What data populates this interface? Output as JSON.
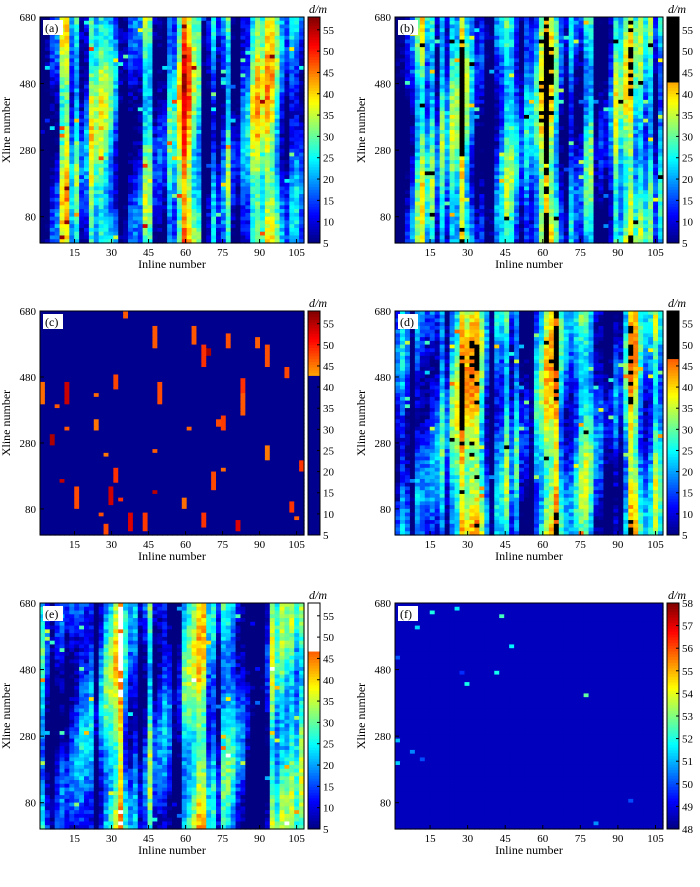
{
  "figure": {
    "panels": [
      "(a)",
      "(b)",
      "(c)",
      "(d)",
      "(e)",
      "(f)"
    ]
  },
  "chart_data": [
    {
      "panel": "(a)",
      "type": "heatmap",
      "xlabel": "Inline number",
      "ylabel": "Xline number",
      "xticks": [
        15,
        30,
        45,
        60,
        75,
        90,
        105
      ],
      "yticks": [
        80,
        280,
        480,
        680
      ],
      "xlim": [
        1,
        108
      ],
      "ylim": [
        1,
        680
      ],
      "colorbar": {
        "label": "d/m",
        "ticks": [
          5,
          10,
          15,
          20,
          25,
          30,
          35,
          40,
          45,
          50,
          55
        ],
        "range": [
          5,
          58
        ],
        "colormap": "jet"
      },
      "pattern": "continuous",
      "seed": 11
    },
    {
      "panel": "(b)",
      "type": "heatmap",
      "xlabel": "Inline number",
      "ylabel": "Xline number",
      "xticks": [
        15,
        30,
        45,
        60,
        75,
        90,
        105
      ],
      "yticks": [
        80,
        280,
        480,
        680
      ],
      "xlim": [
        1,
        108
      ],
      "ylim": [
        1,
        680
      ],
      "colorbar": {
        "label": "d/m",
        "ticks": [
          5,
          10,
          15,
          20,
          25,
          30,
          35,
          40,
          45,
          50,
          55
        ],
        "range": [
          5,
          58
        ],
        "colormap": "jet",
        "saturate_above": 43,
        "saturate_color": "#000000"
      },
      "pattern": "continuous",
      "seed": 23
    },
    {
      "panel": "(c)",
      "type": "heatmap",
      "xlabel": "Inline number",
      "ylabel": "Xline number",
      "xticks": [
        15,
        30,
        45,
        60,
        75,
        90,
        105
      ],
      "yticks": [
        80,
        280,
        480,
        680
      ],
      "xlim": [
        1,
        108
      ],
      "ylim": [
        1,
        680
      ],
      "colorbar": {
        "label": "d/m",
        "ticks": [
          5,
          10,
          15,
          20,
          25,
          30,
          35,
          40,
          45,
          50,
          55
        ],
        "range": [
          5,
          58
        ],
        "colormap": "jet",
        "saturate_below": 43,
        "saturate_color": "#00008f"
      },
      "pattern": "sparse",
      "seed": 37
    },
    {
      "panel": "(d)",
      "type": "heatmap",
      "xlabel": "Inline number",
      "ylabel": "Xline number",
      "xticks": [
        15,
        30,
        45,
        60,
        75,
        90,
        105
      ],
      "yticks": [
        80,
        280,
        480,
        680
      ],
      "xlim": [
        1,
        108
      ],
      "ylim": [
        1,
        680
      ],
      "colorbar": {
        "label": "d/m",
        "ticks": [
          5,
          10,
          15,
          20,
          25,
          30,
          35,
          40,
          45,
          50,
          55
        ],
        "range": [
          5,
          58
        ],
        "colormap": "jet",
        "saturate_above": 47,
        "saturate_color": "#000000"
      },
      "pattern": "continuous",
      "seed": 41
    },
    {
      "panel": "(e)",
      "type": "heatmap",
      "xlabel": "Inline number",
      "ylabel": "Xline number",
      "xticks": [
        15,
        30,
        45,
        60,
        75,
        90,
        105
      ],
      "yticks": [
        80,
        280,
        480,
        680
      ],
      "xlim": [
        1,
        108
      ],
      "ylim": [
        1,
        680
      ],
      "colorbar": {
        "label": "d/m",
        "ticks": [
          5,
          10,
          15,
          20,
          25,
          30,
          35,
          40,
          45,
          50,
          55
        ],
        "range": [
          5,
          58
        ],
        "colormap": "jet",
        "saturate_above": 47,
        "saturate_color": "#ffffff"
      },
      "pattern": "continuous",
      "seed": 53
    },
    {
      "panel": "(f)",
      "type": "heatmap",
      "xlabel": "Inline number",
      "ylabel": "Xline number",
      "xticks": [
        15,
        30,
        45,
        60,
        75,
        90,
        105
      ],
      "yticks": [
        80,
        280,
        480,
        680
      ],
      "xlim": [
        1,
        108
      ],
      "ylim": [
        1,
        680
      ],
      "colorbar": {
        "label": "d/m",
        "ticks": [
          48,
          49,
          50,
          51,
          52,
          53,
          54,
          55,
          56,
          57,
          58
        ],
        "range": [
          48,
          58
        ],
        "colormap": "jet"
      },
      "pattern": "dots",
      "seed": 67
    }
  ]
}
